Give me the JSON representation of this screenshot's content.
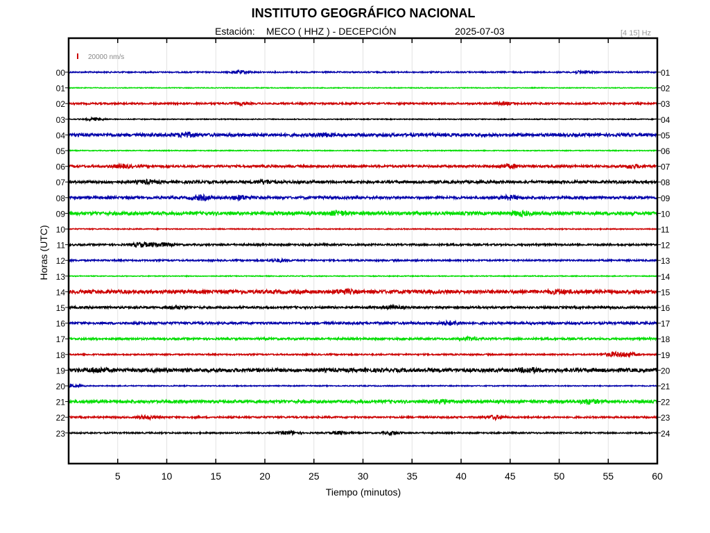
{
  "title": "INSTITUTO GEOGRÁFICO NACIONAL",
  "station_label": "Estación:",
  "station": "MECO ( HHZ ) - DECEPCIÓN",
  "date": "2025-07-03",
  "filter_band": "[4 15] Hz",
  "chart_data": {
    "type": "line",
    "title": "INSTITUTO GEOGRÁFICO NACIONAL",
    "xlabel": "Tiempo (minutos)",
    "ylabel": "Horas (UTC)",
    "xlim": [
      0,
      60
    ],
    "x_ticks": [
      5,
      10,
      15,
      20,
      25,
      30,
      35,
      40,
      45,
      50,
      55,
      60
    ],
    "grid": true,
    "scale_bar": {
      "label": "20000 nm/s",
      "color": "#cc0000"
    },
    "series": [
      {
        "left_label": "00",
        "right_label": "01",
        "color": "#0000aa",
        "noise": 0.9,
        "events": [
          [
            17.5,
            2
          ],
          [
            52.5,
            2
          ]
        ]
      },
      {
        "left_label": "01",
        "right_label": "02",
        "color": "#00dd00",
        "noise": 0.5,
        "events": []
      },
      {
        "left_label": "02",
        "right_label": "03",
        "color": "#cc0000",
        "noise": 1.2,
        "events": [
          [
            17.5,
            1.5
          ],
          [
            44.5,
            1.8
          ]
        ]
      },
      {
        "left_label": "03",
        "right_label": "04",
        "color": "#000000",
        "noise": 0.6,
        "events": [
          [
            2.7,
            2
          ]
        ]
      },
      {
        "left_label": "04",
        "right_label": "05",
        "color": "#0000aa",
        "noise": 2.2,
        "events": [
          [
            12,
            2.5
          ],
          [
            26,
            2
          ]
        ]
      },
      {
        "left_label": "05",
        "right_label": "06",
        "color": "#00dd00",
        "noise": 0.6,
        "events": []
      },
      {
        "left_label": "06",
        "right_label": "07",
        "color": "#cc0000",
        "noise": 1.6,
        "events": [
          [
            5.5,
            2.2
          ],
          [
            45,
            2.5
          ],
          [
            57.5,
            2
          ]
        ]
      },
      {
        "left_label": "07",
        "right_label": "08",
        "color": "#000000",
        "noise": 1.9,
        "events": [
          [
            8,
            2
          ],
          [
            20,
            2.2
          ]
        ]
      },
      {
        "left_label": "08",
        "right_label": "09",
        "color": "#0000aa",
        "noise": 1.8,
        "events": [
          [
            13.5,
            3
          ],
          [
            17.5,
            2.8
          ],
          [
            45,
            2.5
          ]
        ]
      },
      {
        "left_label": "09",
        "right_label": "10",
        "color": "#00dd00",
        "noise": 2.3,
        "events": [
          [
            27.5,
            2.5
          ],
          [
            46,
            2.5
          ]
        ]
      },
      {
        "left_label": "10",
        "right_label": "11",
        "color": "#cc0000",
        "noise": 0.7,
        "events": []
      },
      {
        "left_label": "11",
        "right_label": "12",
        "color": "#000000",
        "noise": 1.3,
        "events": [
          [
            7.5,
            3
          ],
          [
            9.5,
            2.5
          ]
        ]
      },
      {
        "left_label": "12",
        "right_label": "13",
        "color": "#0000aa",
        "noise": 1.1,
        "events": [
          [
            21.5,
            2
          ]
        ]
      },
      {
        "left_label": "13",
        "right_label": "14",
        "color": "#00dd00",
        "noise": 0.6,
        "events": []
      },
      {
        "left_label": "14",
        "right_label": "15",
        "color": "#cc0000",
        "noise": 2.6,
        "events": [
          [
            28,
            2.2
          ],
          [
            50,
            2
          ]
        ]
      },
      {
        "left_label": "15",
        "right_label": "16",
        "color": "#000000",
        "noise": 1.5,
        "events": [
          [
            11,
            2
          ],
          [
            33,
            2
          ]
        ]
      },
      {
        "left_label": "16",
        "right_label": "17",
        "color": "#0000aa",
        "noise": 1.6,
        "events": [
          [
            39,
            2.5
          ]
        ]
      },
      {
        "left_label": "17",
        "right_label": "18",
        "color": "#00dd00",
        "noise": 1.4,
        "events": [
          [
            41,
            2
          ]
        ]
      },
      {
        "left_label": "18",
        "right_label": "19",
        "color": "#cc0000",
        "noise": 1.0,
        "events": [
          [
            55.5,
            3
          ],
          [
            57,
            2.5
          ]
        ]
      },
      {
        "left_label": "19",
        "right_label": "20",
        "color": "#000000",
        "noise": 2.6,
        "events": [
          [
            3,
            2.5
          ],
          [
            47,
            2.5
          ]
        ]
      },
      {
        "left_label": "20",
        "right_label": "21",
        "color": "#0000aa",
        "noise": 0.7,
        "events": [
          [
            0.4,
            2
          ]
        ]
      },
      {
        "left_label": "21",
        "right_label": "22",
        "color": "#00dd00",
        "noise": 2.0,
        "events": [
          [
            38,
            2.5
          ],
          [
            53,
            2.8
          ]
        ]
      },
      {
        "left_label": "22",
        "right_label": "23",
        "color": "#cc0000",
        "noise": 1.2,
        "events": [
          [
            8,
            2.5
          ],
          [
            43.5,
            2.5
          ]
        ]
      },
      {
        "left_label": "23",
        "right_label": "24",
        "color": "#000000",
        "noise": 1.0,
        "events": [
          [
            22.5,
            2.5
          ],
          [
            27.5,
            2
          ],
          [
            33,
            2
          ]
        ]
      }
    ]
  }
}
